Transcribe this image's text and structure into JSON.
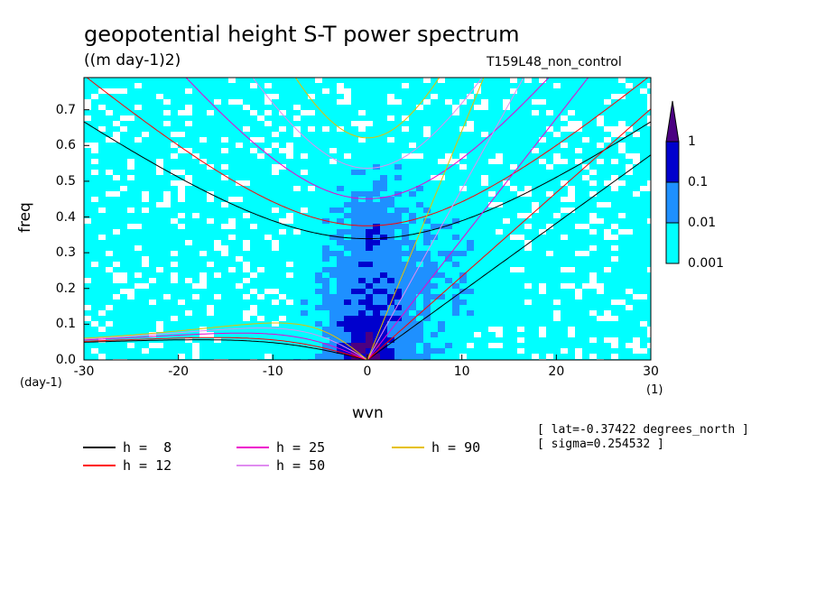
{
  "chart_data": {
    "type": "heatmap",
    "title": "geopotential height S-T power spectrum",
    "units": "((m day-1)2)",
    "experiment": "T159L48_non_control",
    "xlabel": "wvn",
    "xunit": "(1)",
    "ylabel": "freq",
    "yunit": "(day-1)",
    "xlim": [
      -30,
      30
    ],
    "ylim": [
      0,
      0.79
    ],
    "xticks": [
      "-30",
      "-20",
      "-10",
      "0",
      "10",
      "20",
      "30"
    ],
    "xtick_values": [
      -30,
      -20,
      -10,
      0,
      10,
      20,
      30
    ],
    "yticks": [
      "0.0",
      "0.1",
      "0.2",
      "0.3",
      "0.4",
      "0.5",
      "0.6",
      "0.7"
    ],
    "ytick_values": [
      0,
      0.1,
      0.2,
      0.3,
      0.4,
      0.5,
      0.6,
      0.7
    ],
    "colorbar": {
      "levels": [
        "0.001",
        "0.01",
        "0.1",
        "1"
      ],
      "colors": [
        "#00ffff",
        "#1e90ff",
        "#0000cd",
        "#4b0082"
      ]
    },
    "dispersion_curves": [
      {
        "label": "h =  8",
        "h": 8,
        "color": "#000000"
      },
      {
        "label": "h = 12",
        "h": 12,
        "color": "#ff0000"
      },
      {
        "label": "h = 25",
        "h": 25,
        "color": "#ee00cc"
      },
      {
        "label": "h = 50",
        "h": 50,
        "color": "#e08cf0"
      },
      {
        "label": "h = 90",
        "h": 90,
        "color": "#e6c000"
      }
    ],
    "info": [
      "[ lat=-0.37422 degrees_north ]",
      "[ sigma=0.254532 ]"
    ]
  }
}
